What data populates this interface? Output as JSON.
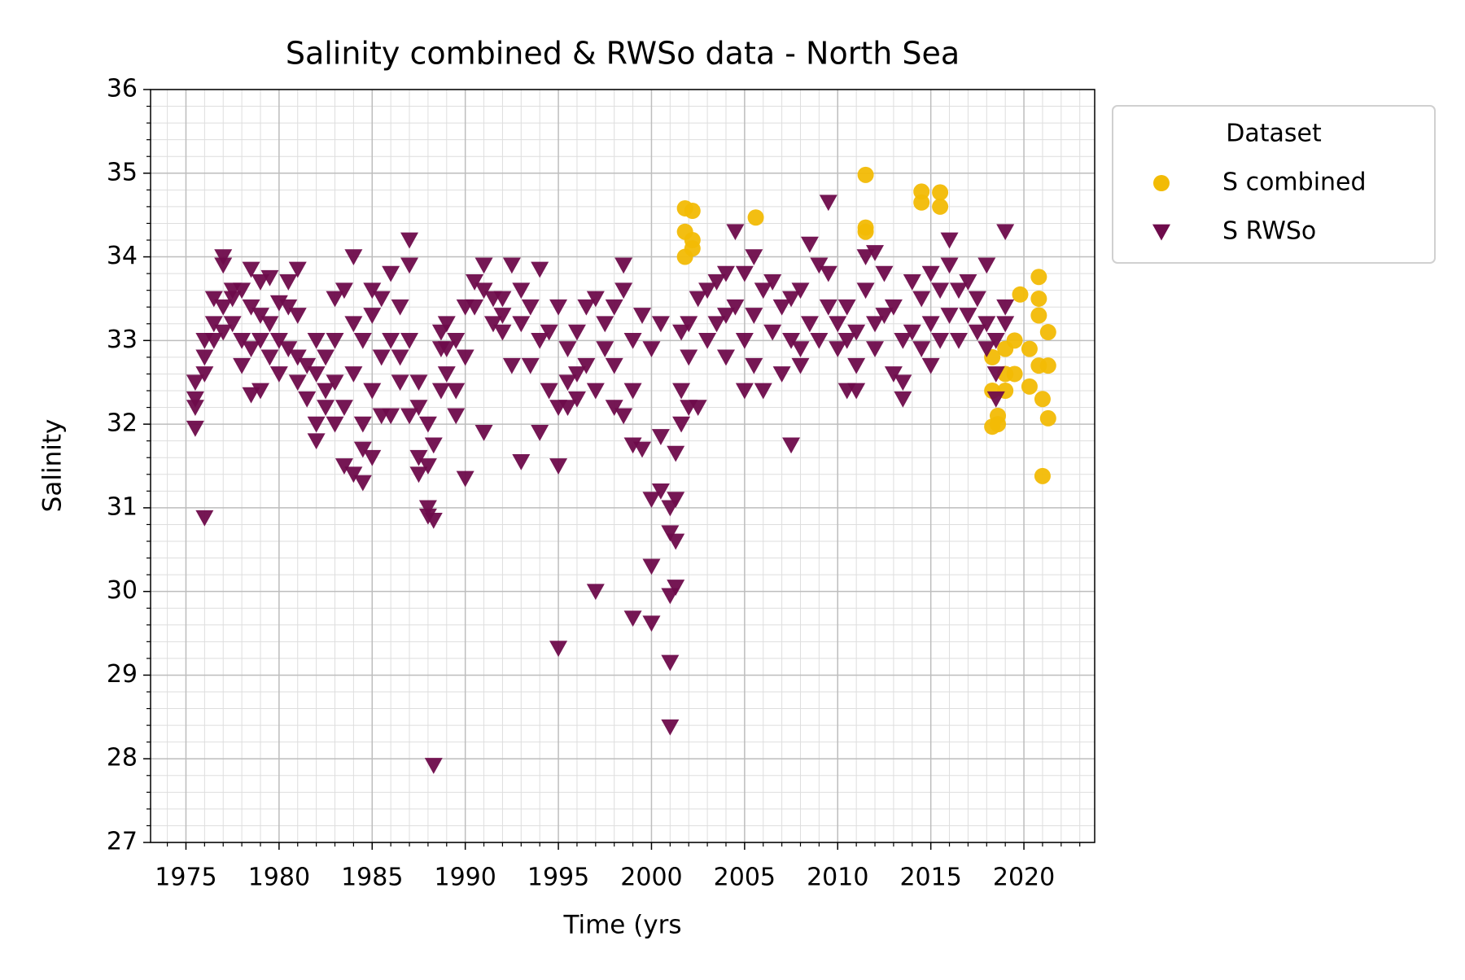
{
  "chart_data": {
    "type": "scatter",
    "title": "Salinity combined & RWSo data - North Sea",
    "xlabel": "Time (yrs",
    "ylabel": "Salinity",
    "xlim": [
      1973.1,
      2023.8
    ],
    "ylim": [
      27,
      36
    ],
    "xticks": [
      1975,
      1980,
      1985,
      1990,
      1995,
      2000,
      2005,
      2010,
      2015,
      2020
    ],
    "yticks": [
      27,
      28,
      29,
      30,
      31,
      32,
      33,
      34,
      35,
      36
    ],
    "grid": true,
    "minor_grid": true,
    "minor_divisions": 5,
    "legend_title": "Dataset",
    "legend_position": "outside upper right",
    "series": [
      {
        "name": "S combined",
        "color": "#f2bb05",
        "marker": "circle",
        "x": [
          2001.8,
          2001.8,
          2001.8,
          2002.2,
          2002.2,
          2002.2,
          2005.6,
          2011.5,
          2011.5,
          2011.5,
          2014.5,
          2014.5,
          2015.5,
          2015.5,
          2018.3,
          2018.3,
          2018.3,
          2018.6,
          2018.6,
          2019,
          2019,
          2019,
          2019.5,
          2019.5,
          2019.8,
          2020.3,
          2020.3,
          2020.8,
          2020.8,
          2020.8,
          2020.8,
          2021,
          2021,
          2021.3,
          2021.3,
          2021.3
        ],
        "values": [
          34.58,
          34.0,
          34.3,
          34.55,
          34.2,
          34.1,
          34.47,
          34.98,
          34.35,
          34.3,
          34.78,
          34.65,
          34.77,
          34.6,
          32.4,
          31.97,
          32.8,
          32.1,
          32.0,
          32.9,
          32.4,
          32.6,
          33.0,
          32.6,
          33.55,
          32.45,
          32.9,
          33.76,
          33.5,
          33.3,
          32.7,
          31.38,
          32.3,
          33.1,
          32.7,
          32.07
        ]
      },
      {
        "name": "S RWSo",
        "color": "#6e0b4b",
        "marker": "triangle_down",
        "x": [
          1975.5,
          1975.5,
          1975.5,
          1975.5,
          1976,
          1976,
          1976,
          1976,
          1976.5,
          1976.5,
          1976.5,
          1977,
          1977,
          1977,
          1977,
          1977.5,
          1977.5,
          1977.5,
          1978,
          1978,
          1978,
          1978.5,
          1978.5,
          1978.5,
          1978.5,
          1979,
          1979,
          1979,
          1979,
          1979.5,
          1979.5,
          1979.5,
          1980,
          1980,
          1980,
          1980.5,
          1980.5,
          1980.5,
          1981,
          1981,
          1981,
          1981,
          1981.5,
          1981.5,
          1982,
          1982,
          1982,
          1982,
          1982.5,
          1982.5,
          1982.5,
          1983,
          1983,
          1983,
          1983,
          1983.5,
          1983.5,
          1983.5,
          1984,
          1984,
          1984,
          1984,
          1984.5,
          1984.5,
          1984.5,
          1984.5,
          1985,
          1985,
          1985,
          1985,
          1985.5,
          1985.5,
          1985.5,
          1986,
          1986,
          1986,
          1986.5,
          1986.5,
          1986.5,
          1987,
          1987,
          1987,
          1987,
          1987.5,
          1987.5,
          1987.5,
          1987.5,
          1988,
          1988,
          1988,
          1988,
          1988.3,
          1988.3,
          1988.3,
          1988.7,
          1988.7,
          1988.7,
          1989,
          1989,
          1989,
          1989.5,
          1989.5,
          1989.5,
          1990,
          1990,
          1990,
          1990.5,
          1990.5,
          1991,
          1991,
          1991,
          1991.5,
          1991.5,
          1992,
          1992,
          1992,
          1992.5,
          1992.5,
          1993,
          1993,
          1993,
          1993.5,
          1993.5,
          1994,
          1994,
          1994,
          1994.5,
          1994.5,
          1995,
          1995,
          1995,
          1995,
          1995.5,
          1995.5,
          1995.5,
          1996,
          1996,
          1996,
          1996.5,
          1996.5,
          1997,
          1997,
          1997,
          1997.5,
          1997.5,
          1998,
          1998,
          1998,
          1998.5,
          1998.5,
          1998.5,
          1999,
          1999,
          1999,
          1999,
          1999.5,
          1999.5,
          2000,
          2000,
          2000,
          2000,
          2000.5,
          2000.5,
          2000.5,
          2001,
          2001,
          2001,
          2001,
          2001,
          2001.3,
          2001.3,
          2001.3,
          2001.3,
          2001.6,
          2001.6,
          2001.6,
          2002,
          2002,
          2002,
          2002.5,
          2002.5,
          2003,
          2003,
          2003.5,
          2003.5,
          2004,
          2004,
          2004,
          2004.5,
          2004.5,
          2005,
          2005,
          2005,
          2005.5,
          2005.5,
          2005.5,
          2006,
          2006,
          2006.5,
          2006.5,
          2007,
          2007,
          2007.5,
          2007.5,
          2007.5,
          2008,
          2008,
          2008,
          2008.5,
          2008.5,
          2009,
          2009,
          2009.5,
          2009.5,
          2009.5,
          2010,
          2010,
          2010.5,
          2010.5,
          2010.5,
          2011,
          2011,
          2011,
          2011.5,
          2011.5,
          2012,
          2012,
          2012,
          2012.5,
          2012.5,
          2013,
          2013,
          2013.5,
          2013.5,
          2013.5,
          2014,
          2014,
          2014.5,
          2014.5,
          2015,
          2015,
          2015,
          2015.5,
          2015.5,
          2016,
          2016,
          2016,
          2016.5,
          2016.5,
          2017,
          2017,
          2017.5,
          2017.5,
          2018,
          2018,
          2018,
          2018.5,
          2018.5,
          2018.5,
          2019,
          2019,
          2019
        ],
        "values": [
          32.5,
          32.2,
          31.95,
          32.3,
          30.88,
          33.0,
          32.8,
          32.6,
          33.2,
          33.5,
          33.0,
          34.0,
          33.9,
          33.4,
          33.1,
          33.5,
          33.2,
          33.6,
          33.0,
          32.7,
          33.6,
          32.35,
          33.85,
          33.4,
          32.9,
          32.4,
          33.3,
          33.0,
          33.7,
          33.75,
          33.2,
          32.8,
          33.45,
          33.0,
          32.6,
          33.4,
          32.9,
          33.7,
          33.85,
          33.3,
          32.5,
          32.8,
          32.3,
          32.7,
          31.8,
          32.0,
          33.0,
          32.6,
          32.4,
          32.8,
          32.2,
          33.5,
          32.5,
          32.0,
          33.0,
          31.5,
          33.6,
          32.2,
          34.0,
          33.2,
          32.6,
          31.4,
          31.3,
          31.7,
          32.0,
          33.0,
          32.4,
          33.3,
          33.6,
          31.6,
          32.1,
          33.5,
          32.8,
          33.8,
          33.0,
          32.1,
          33.4,
          32.8,
          32.5,
          34.2,
          33.9,
          33.0,
          32.1,
          31.6,
          32.5,
          32.2,
          31.4,
          31.0,
          30.9,
          31.5,
          32.0,
          27.92,
          30.85,
          31.75,
          32.4,
          33.1,
          32.9,
          33.2,
          32.9,
          32.6,
          32.1,
          32.4,
          33.0,
          31.35,
          33.4,
          32.8,
          33.7,
          33.4,
          31.9,
          33.9,
          33.6,
          33.2,
          33.5,
          33.5,
          33.1,
          33.3,
          32.7,
          33.9,
          31.55,
          33.6,
          33.2,
          33.4,
          32.7,
          33.85,
          33.0,
          31.9,
          32.4,
          33.1,
          29.32,
          31.5,
          32.2,
          33.4,
          32.5,
          32.9,
          32.2,
          33.1,
          32.3,
          32.6,
          33.4,
          32.7,
          30.0,
          33.5,
          32.4,
          33.2,
          32.9,
          33.4,
          32.2,
          32.7,
          33.9,
          32.1,
          33.6,
          29.68,
          31.75,
          32.4,
          33.0,
          31.7,
          33.3,
          30.3,
          29.62,
          31.1,
          32.9,
          31.2,
          31.85,
          33.2,
          29.15,
          28.38,
          30.7,
          31.0,
          29.95,
          31.65,
          30.6,
          31.1,
          30.05,
          32.0,
          32.4,
          33.1,
          32.8,
          32.2,
          33.2,
          32.2,
          33.5,
          33.6,
          33.0,
          33.7,
          33.2,
          33.3,
          32.8,
          33.8,
          34.3,
          33.4,
          32.4,
          33.8,
          33.0,
          34.0,
          33.3,
          32.7,
          33.6,
          32.4,
          33.1,
          33.7,
          33.4,
          32.6,
          31.75,
          33.0,
          33.5,
          32.9,
          33.6,
          32.7,
          34.15,
          33.2,
          33.9,
          33.0,
          34.65,
          33.8,
          33.4,
          32.9,
          33.2,
          32.4,
          33.0,
          33.4,
          32.4,
          32.7,
          33.1,
          34.0,
          33.6,
          34.05,
          33.2,
          32.9,
          33.8,
          33.3,
          33.4,
          32.6,
          32.3,
          33.0,
          32.5,
          33.7,
          33.1,
          33.5,
          32.9,
          33.8,
          32.7,
          33.2,
          33.6,
          33.0,
          34.2,
          33.9,
          33.3,
          33.0,
          33.6,
          33.7,
          33.3,
          33.5,
          33.1,
          33.9,
          33.2,
          32.9,
          32.6,
          32.3,
          33.0,
          34.3,
          33.4,
          33.2
        ]
      }
    ]
  }
}
